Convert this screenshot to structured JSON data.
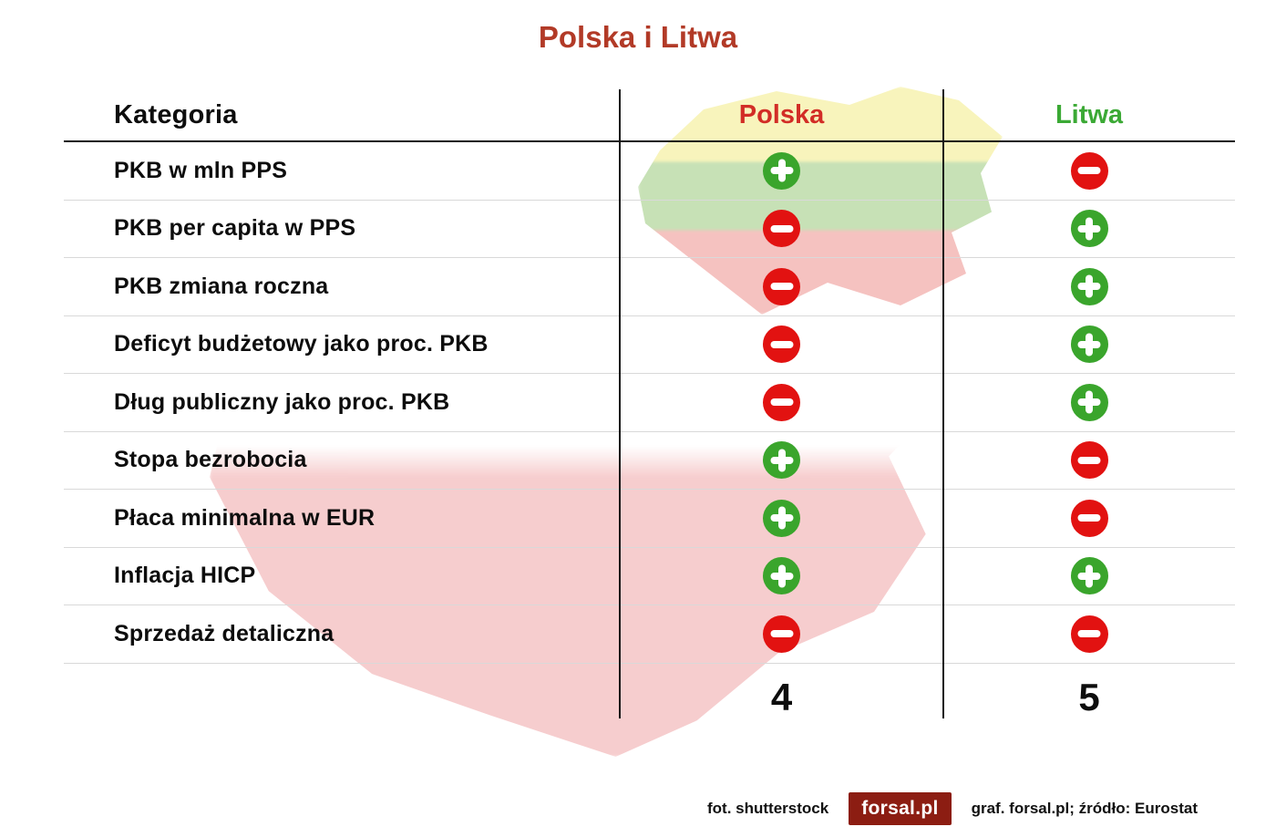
{
  "title": "Polska i Litwa",
  "table": {
    "category_header": "Kategoria",
    "columns": [
      {
        "label": "Polska"
      },
      {
        "label": "Litwa"
      }
    ],
    "rows": [
      {
        "category": "PKB w mln PPS",
        "polska": "plus",
        "litwa": "minus"
      },
      {
        "category": "PKB per capita w PPS",
        "polska": "minus",
        "litwa": "plus"
      },
      {
        "category": "PKB zmiana roczna",
        "polska": "minus",
        "litwa": "plus"
      },
      {
        "category": "Deficyt budżetowy jako proc. PKB",
        "polska": "minus",
        "litwa": "plus"
      },
      {
        "category": "Dług publiczny jako proc. PKB",
        "polska": "minus",
        "litwa": "plus"
      },
      {
        "category": "Stopa bezrobocia",
        "polska": "plus",
        "litwa": "minus"
      },
      {
        "category": "Płaca minimalna w EUR",
        "polska": "plus",
        "litwa": "minus"
      },
      {
        "category": "Inflacja HICP",
        "polska": "plus",
        "litwa": "plus"
      },
      {
        "category": "Sprzedaż detaliczna",
        "polska": "minus",
        "litwa": "minus"
      }
    ],
    "totals": {
      "polska": "4",
      "litwa": "5"
    }
  },
  "footer": {
    "photo_credit": "fot. shutterstock",
    "logo_text": "forsal.pl",
    "credits": "graf. forsal.pl;  źródło: Eurostat"
  },
  "colors": {
    "title": "#b23a27",
    "polska": "#d22d26",
    "litwa": "#3ba935",
    "plus": "#3aa52c",
    "minus": "#e21211",
    "logo_bg": "#8c1d12"
  },
  "chart_data": {
    "type": "table",
    "title": "Polska i Litwa",
    "columns": [
      "Kategoria",
      "Polska",
      "Litwa"
    ],
    "rows": [
      [
        "PKB w mln PPS",
        "+",
        "−"
      ],
      [
        "PKB per capita w PPS",
        "−",
        "+"
      ],
      [
        "PKB zmiana roczna",
        "−",
        "+"
      ],
      [
        "Deficyt budżetowy jako proc. PKB",
        "−",
        "+"
      ],
      [
        "Dług publiczny jako proc. PKB",
        "−",
        "+"
      ],
      [
        "Stopa bezrobocia",
        "+",
        "−"
      ],
      [
        "Płaca minimalna w EUR",
        "+",
        "−"
      ],
      [
        "Inflacja HICP",
        "+",
        "+"
      ],
      [
        "Sprzedaż detaliczna",
        "−",
        "−"
      ]
    ],
    "totals": {
      "Polska": 4,
      "Litwa": 5
    },
    "legend": {
      "plus": "advantage (green)",
      "minus": "disadvantage (red)"
    },
    "source": "Eurostat"
  }
}
